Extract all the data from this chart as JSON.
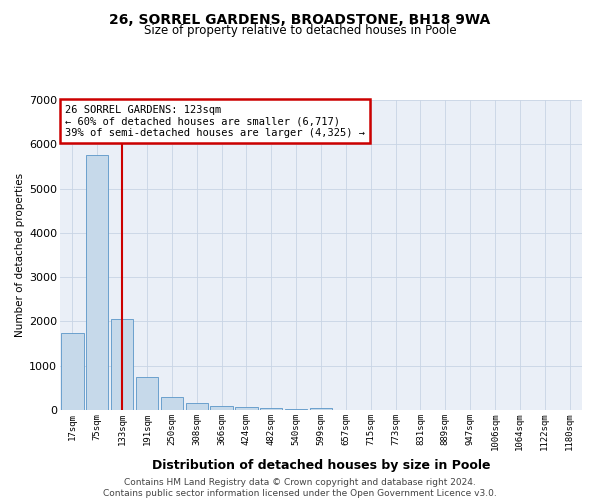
{
  "title1": "26, SORREL GARDENS, BROADSTONE, BH18 9WA",
  "title2": "Size of property relative to detached houses in Poole",
  "xlabel": "Distribution of detached houses by size in Poole",
  "ylabel": "Number of detached properties",
  "categories": [
    "17sqm",
    "75sqm",
    "133sqm",
    "191sqm",
    "250sqm",
    "308sqm",
    "366sqm",
    "424sqm",
    "482sqm",
    "540sqm",
    "599sqm",
    "657sqm",
    "715sqm",
    "773sqm",
    "831sqm",
    "889sqm",
    "947sqm",
    "1006sqm",
    "1064sqm",
    "1122sqm",
    "1180sqm"
  ],
  "values": [
    1750,
    5750,
    2050,
    750,
    290,
    160,
    90,
    60,
    40,
    30,
    55,
    0,
    0,
    0,
    0,
    0,
    0,
    0,
    0,
    0,
    0
  ],
  "bar_color": "#c6d9ea",
  "bar_edge_color": "#5a96c8",
  "vline_x_index": 2,
  "vline_color": "#cc0000",
  "annotation_lines": [
    "26 SORREL GARDENS: 123sqm",
    "← 60% of detached houses are smaller (6,717)",
    "39% of semi-detached houses are larger (4,325) →"
  ],
  "annotation_box_color": "#cc0000",
  "ylim": [
    0,
    7000
  ],
  "yticks": [
    0,
    1000,
    2000,
    3000,
    4000,
    5000,
    6000,
    7000
  ],
  "grid_color": "#c8d4e4",
  "bg_color": "#eaeff7",
  "footer_line1": "Contains HM Land Registry data © Crown copyright and database right 2024.",
  "footer_line2": "Contains public sector information licensed under the Open Government Licence v3.0."
}
